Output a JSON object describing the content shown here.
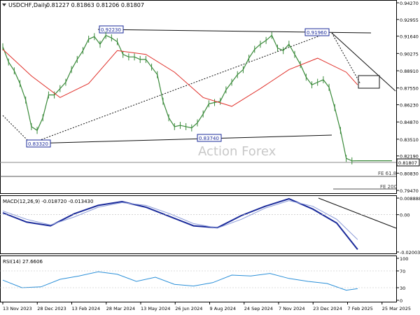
{
  "header": {
    "symbol": "USDCHF,Daily",
    "ohlc": "0.81227 0.81863 0.81206 0.81807"
  },
  "watermark": "Action Forex",
  "colors": {
    "price": "#3a8a3a",
    "ma": "#e0302a",
    "macd": "#1a2a9a",
    "macd_signal": "#8a9ad8",
    "rsi": "#2a8fd8",
    "trendline": "#111111",
    "guide": "#555555",
    "label_box": "#1a2a9a"
  },
  "chart_data": [
    {
      "type": "line",
      "name": "price",
      "title": "USDCHF,Daily",
      "x_ticks": [
        "13 Nov 2023",
        "28 Dec 2023",
        "13 Feb 2024",
        "28 Mar 2024",
        "13 May 2024",
        "26 Jun 2024",
        "9 Aug 2024",
        "24 Sep 2024",
        "7 Nov 2024",
        "23 Dec 2024",
        "7 Feb 2025",
        "25 Mar 2025"
      ],
      "y_ticks": [
        "0.94270",
        "0.92955",
        "0.91640",
        "0.90275",
        "0.88910",
        "0.87550",
        "0.86230",
        "0.84870",
        "0.83510",
        "0.82190",
        "0.80830",
        "0.79470"
      ],
      "ylim": [
        0.7947,
        0.9427
      ],
      "grid": false,
      "series": [
        {
          "name": "Close",
          "x": [
            0,
            6,
            12,
            18,
            24,
            30,
            36,
            42,
            48,
            54,
            60,
            66,
            72,
            78,
            84,
            90,
            96,
            102,
            108,
            114,
            120,
            126,
            132,
            138,
            144,
            150,
            156,
            162,
            168,
            174,
            180,
            186,
            192,
            198,
            204,
            210,
            216,
            222,
            228,
            234,
            240,
            246,
            252,
            258,
            264,
            270,
            276,
            282,
            288,
            294,
            300,
            306,
            312,
            318,
            324,
            330,
            336,
            342,
            348,
            354,
            360,
            366,
            372,
            378,
            384,
            390,
            396,
            402,
            408
          ],
          "values": [
            0.908,
            0.896,
            0.889,
            0.879,
            0.866,
            0.845,
            0.842,
            0.852,
            0.87,
            0.87,
            0.875,
            0.88,
            0.89,
            0.898,
            0.905,
            0.914,
            0.916,
            0.91,
            0.917,
            0.915,
            0.912,
            0.902,
            0.9,
            0.9,
            0.898,
            0.898,
            0.892,
            0.886,
            0.865,
            0.852,
            0.845,
            0.846,
            0.845,
            0.844,
            0.848,
            0.855,
            0.863,
            0.864,
            0.865,
            0.874,
            0.88,
            0.886,
            0.89,
            0.899,
            0.906,
            0.91,
            0.913,
            0.917,
            0.907,
            0.905,
            0.91,
            0.902,
            0.894,
            0.884,
            0.878,
            0.88,
            0.882,
            0.876,
            0.86,
            0.842,
            0.82,
            0.818,
            0.8181,
            0.8181,
            0.8181,
            0.8181,
            0.8181,
            0.8181,
            0.8181
          ]
        },
        {
          "name": "MA",
          "x": [
            0,
            30,
            60,
            90,
            120,
            150,
            180,
            210,
            240,
            270,
            300,
            330,
            360,
            372
          ],
          "values": [
            0.906,
            0.885,
            0.868,
            0.879,
            0.905,
            0.902,
            0.888,
            0.868,
            0.861,
            0.875,
            0.89,
            0.899,
            0.888,
            0.878
          ]
        }
      ],
      "annotations": [
        "0.83320",
        "0.92230",
        "0.83740",
        "0.91960",
        "FE 61.8",
        "FE 200"
      ],
      "last_price": "0.81807"
    },
    {
      "type": "line",
      "name": "macd",
      "title": "MACD(12,26,9) -0.018720 -0.013430",
      "y_ticks": [
        "0.008888",
        "0.00",
        "-0.020034"
      ],
      "ylim": [
        -0.020034,
        0.008888
      ],
      "series": [
        {
          "name": "MACD",
          "x": [
            0,
            25,
            50,
            75,
            100,
            125,
            150,
            175,
            200,
            225,
            250,
            275,
            300,
            325,
            350,
            372
          ],
          "values": [
            0.001,
            -0.004,
            -0.006,
            0.0005,
            0.005,
            0.007,
            0.004,
            -0.001,
            -0.006,
            -0.007,
            -0.0005,
            0.0045,
            0.0085,
            0.003,
            -0.0045,
            -0.0187
          ]
        },
        {
          "name": "Signal",
          "x": [
            0,
            25,
            50,
            75,
            100,
            125,
            150,
            175,
            200,
            225,
            250,
            275,
            300,
            325,
            350,
            372
          ],
          "values": [
            0.002,
            -0.0025,
            -0.0055,
            -0.0012,
            0.004,
            0.0065,
            0.005,
            0.0005,
            -0.0048,
            -0.0072,
            -0.0025,
            0.0035,
            0.0075,
            0.0045,
            -0.0025,
            -0.0134
          ]
        }
      ]
    },
    {
      "type": "line",
      "name": "rsi",
      "title": "RSI(14) 27.6606",
      "y_ticks": [
        "100",
        "70",
        "30",
        "0"
      ],
      "ylim": [
        0,
        100
      ],
      "series": [
        {
          "name": "RSI",
          "x": [
            0,
            20,
            40,
            60,
            80,
            100,
            120,
            140,
            160,
            180,
            200,
            220,
            240,
            260,
            280,
            300,
            320,
            340,
            360,
            372
          ],
          "values": [
            48,
            30,
            32,
            50,
            58,
            68,
            62,
            45,
            55,
            38,
            34,
            42,
            60,
            58,
            64,
            52,
            45,
            40,
            24,
            27.66
          ]
        }
      ]
    }
  ]
}
